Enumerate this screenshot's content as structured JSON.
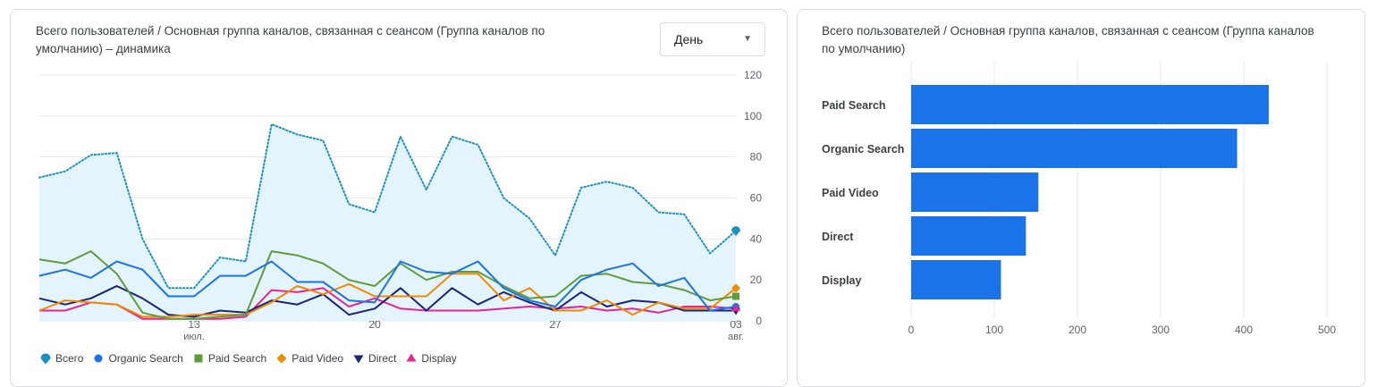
{
  "left_card": {
    "title": "Всего пользователей / Основная группа каналов, связанная с сеансом (Группа каналов по умолчанию) – динамика",
    "dropdown_value": "День"
  },
  "right_card": {
    "title": "Всего пользователей / Основная группа каналов, связанная с сеансом (Группа каналов по умолчанию)"
  },
  "colors": {
    "total": "#1a91c4",
    "total_fill": "#e3f4fc",
    "organic": "#1a73e8",
    "paid_search": "#5f9c3a",
    "paid_video": "#f08b00",
    "direct": "#1a237e",
    "display": "#e52592",
    "bar": "#1a73e8",
    "grid": "#e8eaed",
    "axis_text": "#5f6368"
  },
  "chart_data": [
    {
      "type": "line",
      "x_ticks": [
        {
          "index": 6,
          "label": "13",
          "sub": "июл."
        },
        {
          "index": 13,
          "label": "20",
          "sub": ""
        },
        {
          "index": 20,
          "label": "27",
          "sub": ""
        },
        {
          "index": 27,
          "label": "03",
          "sub": "авг."
        }
      ],
      "y_ticks": [
        0,
        20,
        40,
        60,
        80,
        100,
        120
      ],
      "ylim": [
        0,
        120
      ],
      "n_points": 28,
      "legend_position": "bottom-left",
      "series": [
        {
          "key": "total",
          "name": "Всего",
          "marker": "pin",
          "style": "dotted-area",
          "values": [
            70,
            73,
            81,
            82,
            40,
            16,
            16,
            31,
            29,
            96,
            91,
            88,
            57,
            53,
            90,
            64,
            90,
            86,
            60,
            50,
            32,
            65,
            68,
            65,
            53,
            52,
            33,
            44
          ]
        },
        {
          "key": "organic",
          "name": "Organic Search",
          "marker": "circle",
          "style": "line",
          "values": [
            22,
            25,
            21,
            29,
            25,
            12,
            12,
            22,
            22,
            29,
            19,
            19,
            10,
            9,
            29,
            24,
            23,
            29,
            16,
            10,
            7,
            20,
            25,
            28,
            17,
            21,
            5,
            7
          ]
        },
        {
          "key": "paid_search",
          "name": "Paid Search",
          "marker": "square",
          "style": "line",
          "values": [
            30,
            28,
            34,
            23,
            4,
            1,
            1,
            2,
            3,
            34,
            32,
            28,
            20,
            17,
            28,
            20,
            24,
            24,
            17,
            11,
            12,
            22,
            23,
            19,
            18,
            15,
            10,
            12
          ]
        },
        {
          "key": "paid_video",
          "name": "Paid Video",
          "marker": "diamond",
          "style": "line",
          "values": [
            5,
            10,
            9,
            8,
            2,
            2,
            3,
            3,
            3,
            9,
            17,
            13,
            18,
            12,
            12,
            12,
            23,
            23,
            10,
            16,
            5,
            5,
            10,
            3,
            9,
            6,
            6,
            16
          ]
        },
        {
          "key": "direct",
          "name": "Direct",
          "marker": "triangle-down",
          "style": "line",
          "values": [
            11,
            8,
            11,
            17,
            11,
            3,
            2,
            5,
            4,
            10,
            8,
            13,
            3,
            6,
            16,
            5,
            16,
            8,
            14,
            9,
            5,
            14,
            7,
            10,
            9,
            5,
            5,
            5
          ]
        },
        {
          "key": "display",
          "name": "Display",
          "marker": "triangle-up",
          "style": "line",
          "values": [
            5,
            5,
            9,
            8,
            1,
            1,
            1,
            1,
            2,
            15,
            14,
            16,
            7,
            11,
            6,
            5,
            5,
            5,
            6,
            7,
            6,
            7,
            5,
            6,
            4,
            7,
            7,
            6
          ]
        }
      ]
    },
    {
      "type": "bar",
      "orientation": "horizontal",
      "categories": [
        "Paid Search",
        "Organic Search",
        "Paid Video",
        "Direct",
        "Display"
      ],
      "values": [
        430,
        392,
        153,
        138,
        108
      ],
      "x_ticks": [
        0,
        100,
        200,
        300,
        400,
        500
      ],
      "xlim": [
        0,
        500
      ]
    }
  ]
}
